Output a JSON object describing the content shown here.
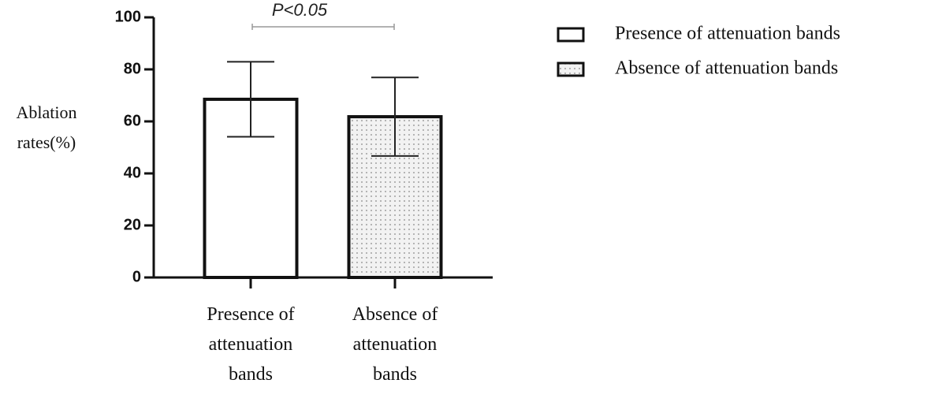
{
  "chart_data": {
    "type": "bar",
    "y_label": "Ablation rates(%)",
    "annotation": "P<0.05",
    "categories": [
      "Presence of attenuation bands",
      "Absence of attenuation bands"
    ],
    "series": [
      {
        "name": "Presence of attenuation bands",
        "color": "#ffffff",
        "pattern": "none",
        "values": [
          68.5,
          null
        ],
        "errors": [
          14.4,
          null
        ]
      },
      {
        "name": "Absence of attenuation bands",
        "color": "#e8e8e8",
        "pattern": "dots",
        "values": [
          null,
          61.8
        ],
        "errors": [
          null,
          15.1
        ]
      }
    ],
    "ylim": [
      0,
      100
    ],
    "yticks": [
      0,
      20,
      40,
      60,
      80,
      100
    ],
    "grid": false,
    "legend": "right"
  }
}
